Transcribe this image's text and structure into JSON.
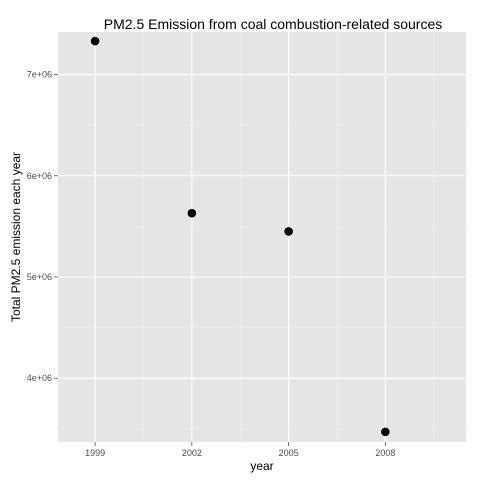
{
  "chart_data": {
    "type": "scatter",
    "title": "PM2.5 Emission from coal combustion-related sources",
    "xlabel": "year",
    "ylabel": "Total PM2.5 emission each year",
    "x_ticks": [
      "1999",
      "2002",
      "2005",
      "2008"
    ],
    "y_ticks": [
      {
        "value": 4000000,
        "label": "4e+06"
      },
      {
        "value": 5000000,
        "label": "5e+06"
      },
      {
        "value": 6000000,
        "label": "6e+06"
      },
      {
        "value": 7000000,
        "label": "7e+06"
      }
    ],
    "points": [
      {
        "x": 1999,
        "y": 7330000
      },
      {
        "x": 2002,
        "y": 5630000
      },
      {
        "x": 2005,
        "y": 5450000
      },
      {
        "x": 2008,
        "y": 3470000
      }
    ],
    "xlim": [
      1997.85,
      2010.5
    ],
    "ylim": [
      3370000,
      7420000
    ],
    "grid": true,
    "panel_color": "#e5e5e5",
    "grid_color": "#ffffff",
    "point_color": "#000000"
  }
}
